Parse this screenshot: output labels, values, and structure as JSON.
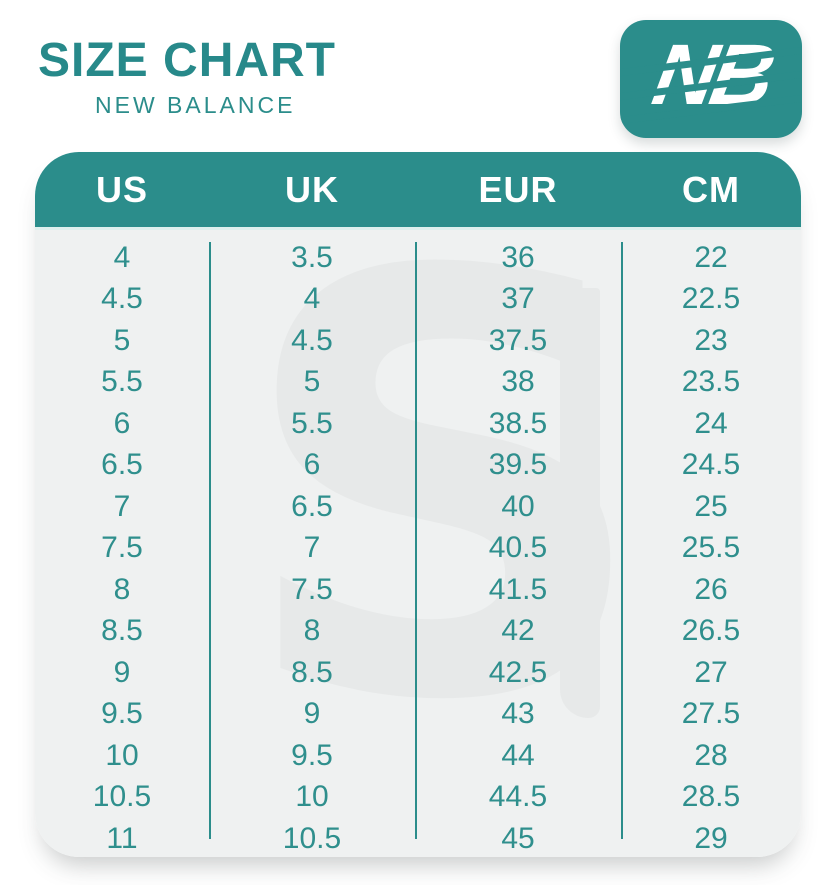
{
  "header": {
    "title": "SIZE CHART",
    "subtitle": "NEW BALANCE"
  },
  "logo": {
    "monogram": "NB"
  },
  "watermark": {
    "glyph": "S"
  },
  "colors": {
    "brand_teal": "#2b8d8b",
    "number_teal": "#2f8f8d",
    "table_body_gray": "#eff1f1",
    "watermark_gray": "#e7e9e9",
    "header_text": "#ffffff"
  },
  "chart_data": {
    "type": "table",
    "title": "SIZE CHART",
    "subtitle": "NEW BALANCE",
    "columns": [
      "US",
      "UK",
      "EUR",
      "CM"
    ],
    "rows": [
      [
        "4",
        "3.5",
        "36",
        "22"
      ],
      [
        "4.5",
        "4",
        "37",
        "22.5"
      ],
      [
        "5",
        "4.5",
        "37.5",
        "23"
      ],
      [
        "5.5",
        "5",
        "38",
        "23.5"
      ],
      [
        "6",
        "5.5",
        "38.5",
        "24"
      ],
      [
        "6.5",
        "6",
        "39.5",
        "24.5"
      ],
      [
        "7",
        "6.5",
        "40",
        "25"
      ],
      [
        "7.5",
        "7",
        "40.5",
        "25.5"
      ],
      [
        "8",
        "7.5",
        "41.5",
        "26"
      ],
      [
        "8.5",
        "8",
        "42",
        "26.5"
      ],
      [
        "9",
        "8.5",
        "42.5",
        "27"
      ],
      [
        "9.5",
        "9",
        "43",
        "27.5"
      ],
      [
        "10",
        "9.5",
        "44",
        "28"
      ],
      [
        "10.5",
        "10",
        "44.5",
        "28.5"
      ],
      [
        "11",
        "10.5",
        "45",
        "29"
      ]
    ],
    "layout": {
      "header_background": "#2b8d8b",
      "grid": "vertical-dividers-only",
      "legend": "none"
    }
  }
}
